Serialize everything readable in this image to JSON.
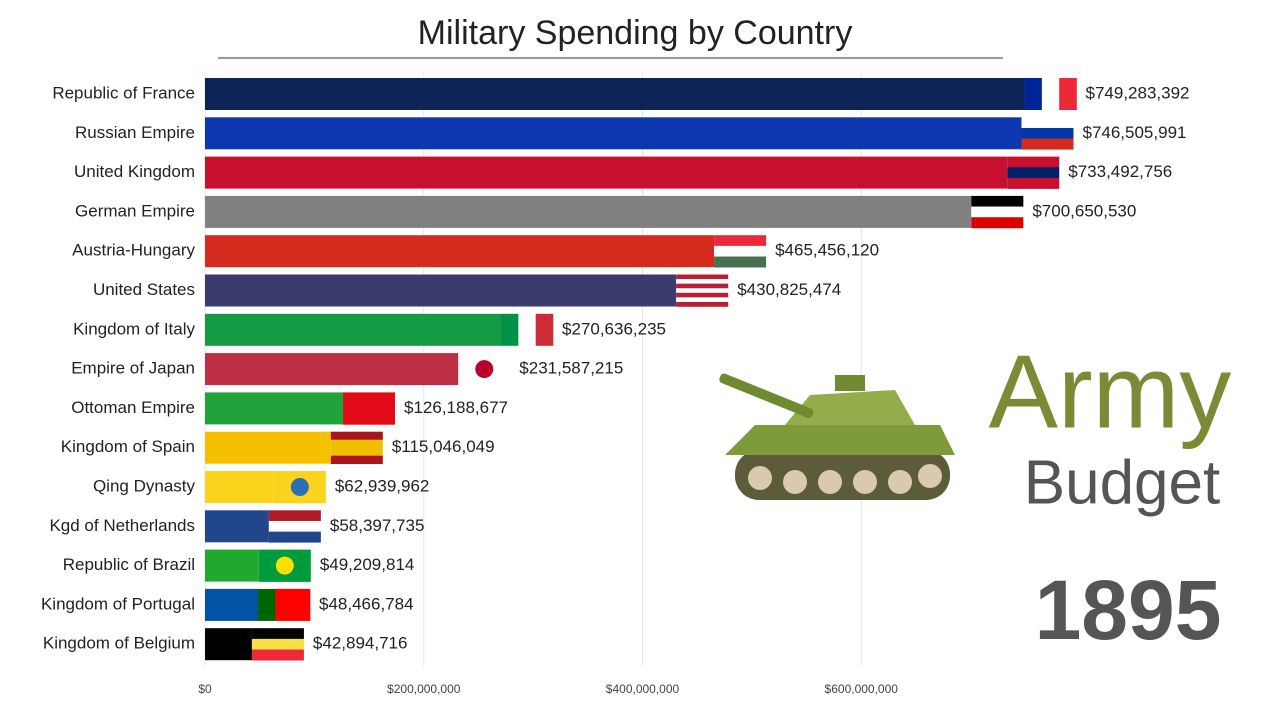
{
  "chart_data": {
    "type": "bar",
    "orientation": "horizontal",
    "title": "Military Spending by Country",
    "categories": [
      "Republic of France",
      "Russian Empire",
      "United Kingdom",
      "German Empire",
      "Austria-Hungary",
      "United States",
      "Kingdom of Italy",
      "Empire of Japan",
      "Ottoman Empire",
      "Kingdom of Spain",
      "Qing Dynasty",
      "Kgd of Netherlands",
      "Republic of Brazil",
      "Kingdom of Portugal",
      "Kingdom of Belgium"
    ],
    "values": [
      749283392,
      746505991,
      733492756,
      700650530,
      465456120,
      430825474,
      270636235,
      231587215,
      126188677,
      115046049,
      62939962,
      58397735,
      49209814,
      48466784,
      42894716
    ],
    "value_labels": [
      "$749,283,392",
      "$746,505,991",
      "$733,492,756",
      "$700,650,530",
      "$465,456,120",
      "$430,825,474",
      "$270,636,235",
      "$231,587,215",
      "$126,188,677",
      "$115,046,049",
      "$62,939,962",
      "$58,397,735",
      "$49,209,814",
      "$48,466,784",
      "$42,894,716"
    ],
    "colors": [
      "#0d2457",
      "#0b37b0",
      "#c8102e",
      "#808080",
      "#d52b1e",
      "#3c3b6e",
      "#169b45",
      "#bc2f45",
      "#1fa33a",
      "#f5c000",
      "#f9d31c",
      "#21468b",
      "#1faa2e",
      "#0053a5",
      "#000000"
    ],
    "xlim": [
      0,
      800000000
    ],
    "xticks": [
      {
        "value": 0,
        "label": "$0"
      },
      {
        "value": 200000000,
        "label": "$200,000,000"
      },
      {
        "value": 400000000,
        "label": "$400,000,000"
      },
      {
        "value": 600000000,
        "label": "$600,000,000"
      }
    ],
    "grid": true,
    "annotations": [
      "Army",
      "Budget",
      "1895"
    ]
  }
}
